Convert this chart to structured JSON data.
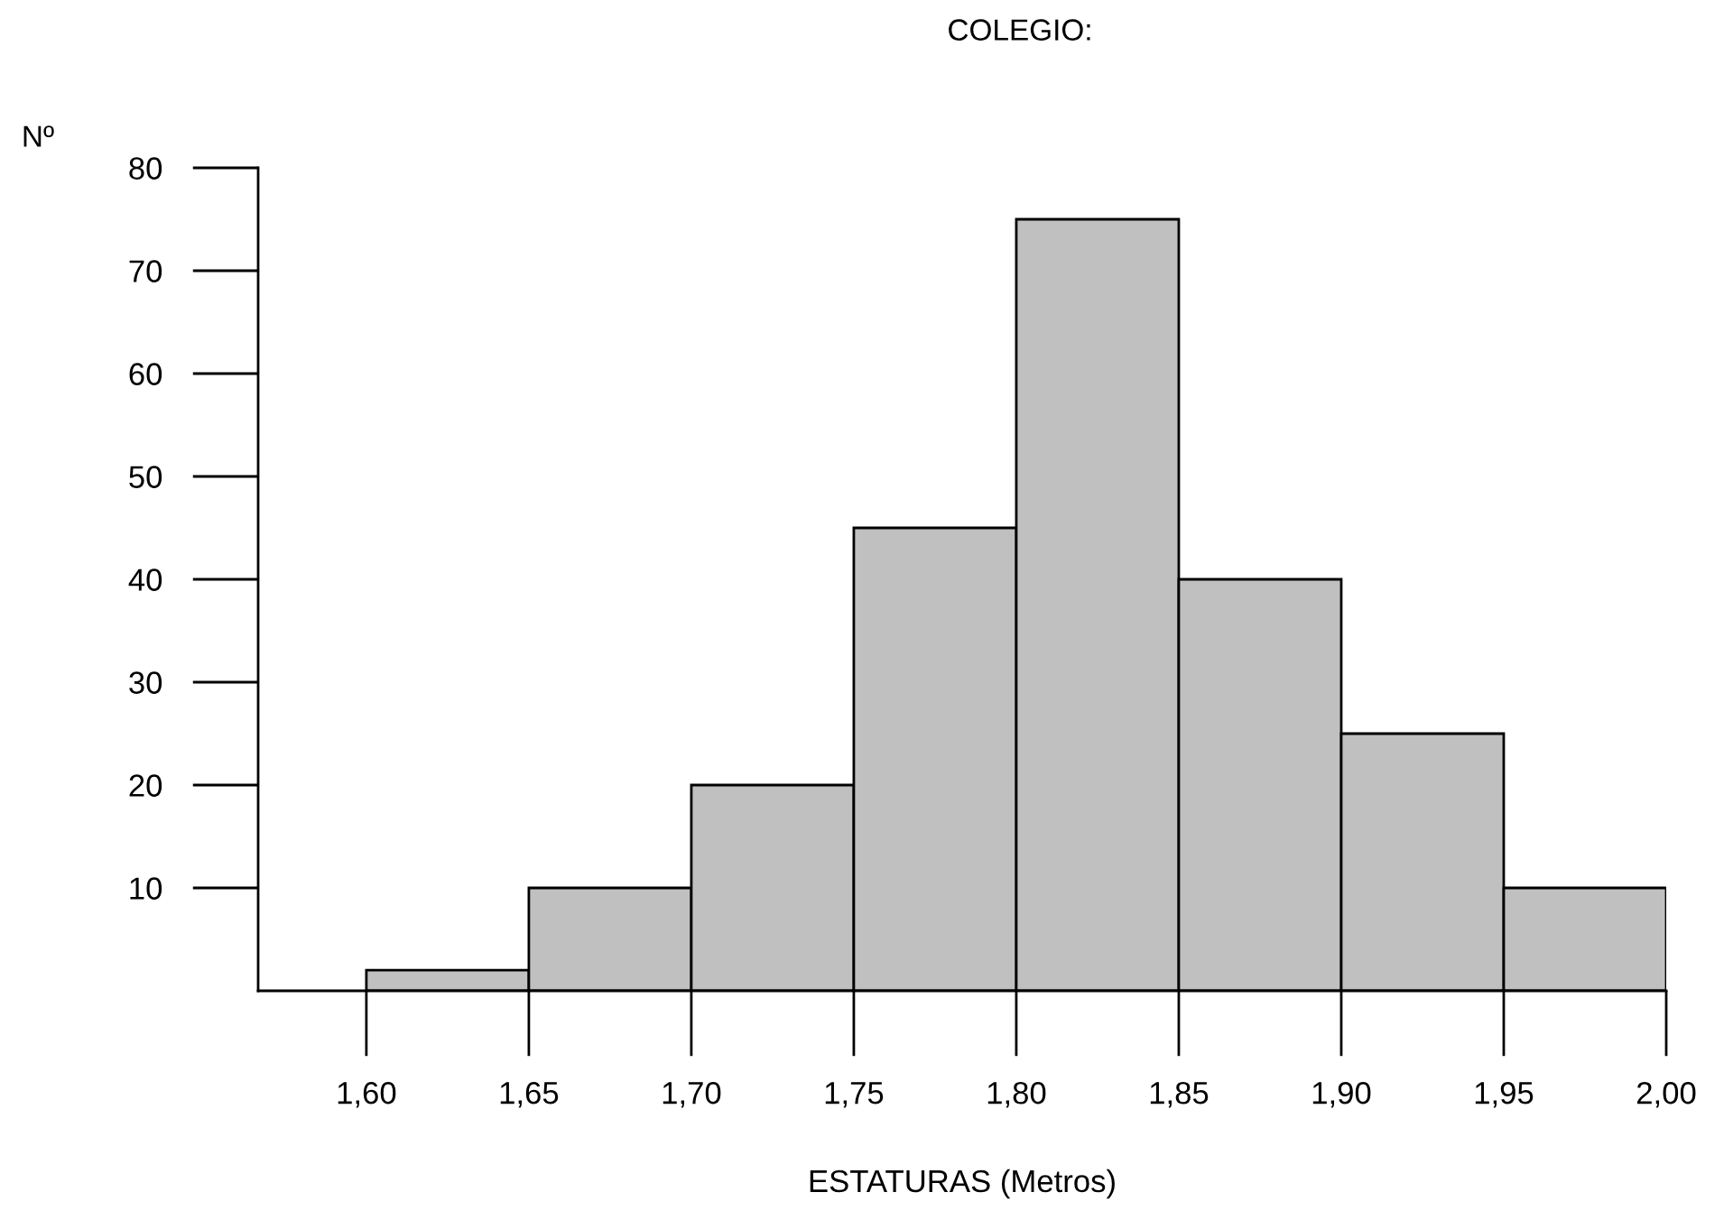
{
  "chart_data": {
    "type": "histogram",
    "title": "COLEGIO:",
    "xlabel": "ESTATURAS (Metros)",
    "ylabel": "Nº",
    "bins": [
      1.6,
      1.65,
      1.7,
      1.75,
      1.8,
      1.85,
      1.9,
      1.95,
      2.0
    ],
    "values": [
      2,
      10,
      20,
      45,
      75,
      40,
      25,
      10
    ],
    "color": "#c0c0c0",
    "xlim": [
      1.5667,
      2.0
    ],
    "ylim": [
      0,
      80
    ],
    "xticks": [
      {
        "value": 1.6,
        "label": "1,60"
      },
      {
        "value": 1.65,
        "label": "1,65"
      },
      {
        "value": 1.7,
        "label": "1,70"
      },
      {
        "value": 1.75,
        "label": "1,75"
      },
      {
        "value": 1.8,
        "label": "1,80"
      },
      {
        "value": 1.85,
        "label": "1,85"
      },
      {
        "value": 1.9,
        "label": "1,90"
      },
      {
        "value": 1.95,
        "label": "1,95"
      },
      {
        "value": 2.0,
        "label": "2,00"
      }
    ],
    "yticks": [
      10,
      20,
      30,
      40,
      50,
      60,
      70,
      80
    ],
    "grid": false,
    "legend": false
  }
}
